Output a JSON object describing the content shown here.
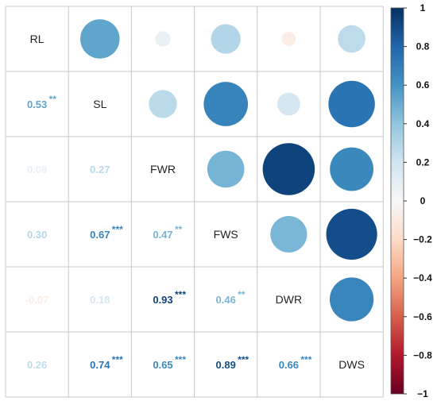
{
  "chart_data": {
    "type": "heatmap",
    "variables": [
      "RL",
      "SL",
      "FWR",
      "FWS",
      "DWR",
      "DWS"
    ],
    "matrix": [
      [
        1.0,
        0.53,
        0.08,
        0.3,
        -0.07,
        0.26
      ],
      [
        0.53,
        1.0,
        0.27,
        0.67,
        0.18,
        0.74
      ],
      [
        0.08,
        0.27,
        1.0,
        0.47,
        0.93,
        0.65
      ],
      [
        0.3,
        0.67,
        0.47,
        1.0,
        0.46,
        0.89
      ],
      [
        -0.07,
        0.18,
        0.93,
        0.46,
        1.0,
        0.66
      ],
      [
        0.26,
        0.74,
        0.65,
        0.89,
        0.66,
        1.0
      ]
    ],
    "lower_labels": [
      {
        "row": 1,
        "col": 0,
        "text": "0.53",
        "stars": "**"
      },
      {
        "row": 2,
        "col": 0,
        "text": "0.08",
        "stars": ""
      },
      {
        "row": 2,
        "col": 1,
        "text": "0.27",
        "stars": ""
      },
      {
        "row": 3,
        "col": 0,
        "text": "0.30",
        "stars": ""
      },
      {
        "row": 3,
        "col": 1,
        "text": "0.67",
        "stars": "***"
      },
      {
        "row": 3,
        "col": 2,
        "text": "0.47",
        "stars": "**"
      },
      {
        "row": 4,
        "col": 0,
        "text": "-0.07",
        "stars": ""
      },
      {
        "row": 4,
        "col": 1,
        "text": "0.18",
        "stars": ""
      },
      {
        "row": 4,
        "col": 2,
        "text": "0.93",
        "stars": "***"
      },
      {
        "row": 4,
        "col": 3,
        "text": "0.46",
        "stars": "**"
      },
      {
        "row": 5,
        "col": 0,
        "text": "0.26",
        "stars": ""
      },
      {
        "row": 5,
        "col": 1,
        "text": "0.74",
        "stars": "***"
      },
      {
        "row": 5,
        "col": 2,
        "text": "0.65",
        "stars": "***"
      },
      {
        "row": 5,
        "col": 3,
        "text": "0.89",
        "stars": "***"
      },
      {
        "row": 5,
        "col": 4,
        "text": "0.66",
        "stars": "***"
      }
    ],
    "upper": "circles",
    "lower": "numbers",
    "grid": true,
    "legend": "right",
    "colorbar": {
      "range": [
        -1,
        1
      ],
      "ticks": [
        "1",
        "0.8",
        "0.6",
        "0.4",
        "0.2",
        "0",
        "−0.2",
        "−0.4",
        "−0.6",
        "−0.8",
        "−1"
      ],
      "tick_values": [
        1,
        0.8,
        0.6,
        0.4,
        0.2,
        0,
        -0.2,
        -0.4,
        -0.6,
        -0.8,
        -1
      ]
    },
    "colors": {
      "negative_end": "#67001F",
      "negative_mid": "#D6604D",
      "neutral": "#F7F7F7",
      "positive_mid": "#4393C3",
      "positive_end": "#053061",
      "grid": "#c8c8c8"
    }
  }
}
